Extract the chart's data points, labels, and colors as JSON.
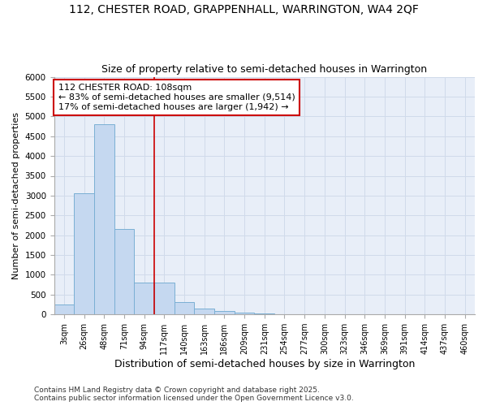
{
  "title1": "112, CHESTER ROAD, GRAPPENHALL, WARRINGTON, WA4 2QF",
  "title2": "Size of property relative to semi-detached houses in Warrington",
  "xlabel": "Distribution of semi-detached houses by size in Warrington",
  "ylabel": "Number of semi-detached properties",
  "categories": [
    "3sqm",
    "26sqm",
    "48sqm",
    "71sqm",
    "94sqm",
    "117sqm",
    "140sqm",
    "163sqm",
    "186sqm",
    "209sqm",
    "231sqm",
    "254sqm",
    "277sqm",
    "300sqm",
    "323sqm",
    "346sqm",
    "369sqm",
    "391sqm",
    "414sqm",
    "437sqm",
    "460sqm"
  ],
  "values": [
    250,
    3050,
    4800,
    2150,
    800,
    800,
    310,
    155,
    90,
    50,
    15,
    10,
    0,
    0,
    0,
    0,
    0,
    0,
    0,
    0,
    0
  ],
  "ylim": [
    0,
    6000
  ],
  "yticks": [
    0,
    500,
    1000,
    1500,
    2000,
    2500,
    3000,
    3500,
    4000,
    4500,
    5000,
    5500,
    6000
  ],
  "bar_color": "#c5d8f0",
  "bar_edge_color": "#7aafd4",
  "property_line_x": 4.5,
  "annotation_line1": "112 CHESTER ROAD: 108sqm",
  "annotation_line2": "← 83% of semi-detached houses are smaller (9,514)",
  "annotation_line3": "17% of semi-detached houses are larger (1,942) →",
  "annotation_box_color": "#ffffff",
  "annotation_border_color": "#cc0000",
  "property_line_color": "#cc0000",
  "grid_color": "#d0daea",
  "background_color": "#e8eef8",
  "fig_background": "#ffffff",
  "footer1": "Contains HM Land Registry data © Crown copyright and database right 2025.",
  "footer2": "Contains public sector information licensed under the Open Government Licence v3.0."
}
